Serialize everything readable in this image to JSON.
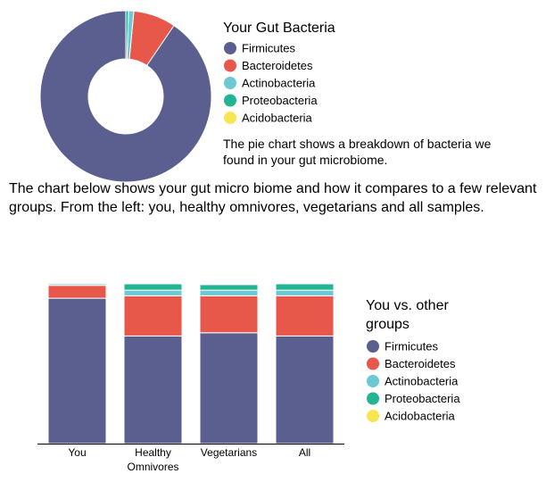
{
  "pie_description": "The pie chart shows a breakdown of bacteria we found in your gut microbiome.",
  "stack_intro": "The chart below shows your gut micro biome and how it compares to a few relevant groups. From the left: you, healthy omnivores, vegetarians and all samples.",
  "colors": {
    "Firmicutes": "#5a5f8f",
    "Bacteroidetes": "#e7574a",
    "Actinobacteria": "#6cc8d3",
    "Proteobacteria": "#23b494",
    "Acidobacteria": "#f8e552"
  },
  "chart_data": [
    {
      "type": "pie",
      "title": "Your Gut Bacteria",
      "donut": true,
      "legend_position": "right",
      "labels": [
        "Firmicutes",
        "Bacteroidetes",
        "Actinobacteria",
        "Proteobacteria",
        "Acidobacteria"
      ],
      "values": [
        90.5,
        8.0,
        1.0,
        0.5,
        0.0
      ]
    },
    {
      "type": "bar",
      "stacked": true,
      "title": "You vs. other groups",
      "legend_position": "right",
      "categories": [
        "You",
        "Healthy Omnivores",
        "Vegetarians",
        "All"
      ],
      "series": [
        {
          "name": "Firmicutes",
          "values": [
            90.5,
            67.0,
            69.0,
            67.0
          ]
        },
        {
          "name": "Bacteroidetes",
          "values": [
            8.0,
            25.0,
            23.0,
            25.0
          ]
        },
        {
          "name": "Actinobacteria",
          "values": [
            1.0,
            3.5,
            3.5,
            3.5
          ]
        },
        {
          "name": "Proteobacteria",
          "values": [
            0.5,
            4.0,
            3.5,
            4.0
          ]
        },
        {
          "name": "Acidobacteria",
          "values": [
            0.0,
            0.5,
            0.5,
            0.5
          ]
        }
      ],
      "ylim": [
        0,
        100
      ],
      "grid": false
    }
  ]
}
